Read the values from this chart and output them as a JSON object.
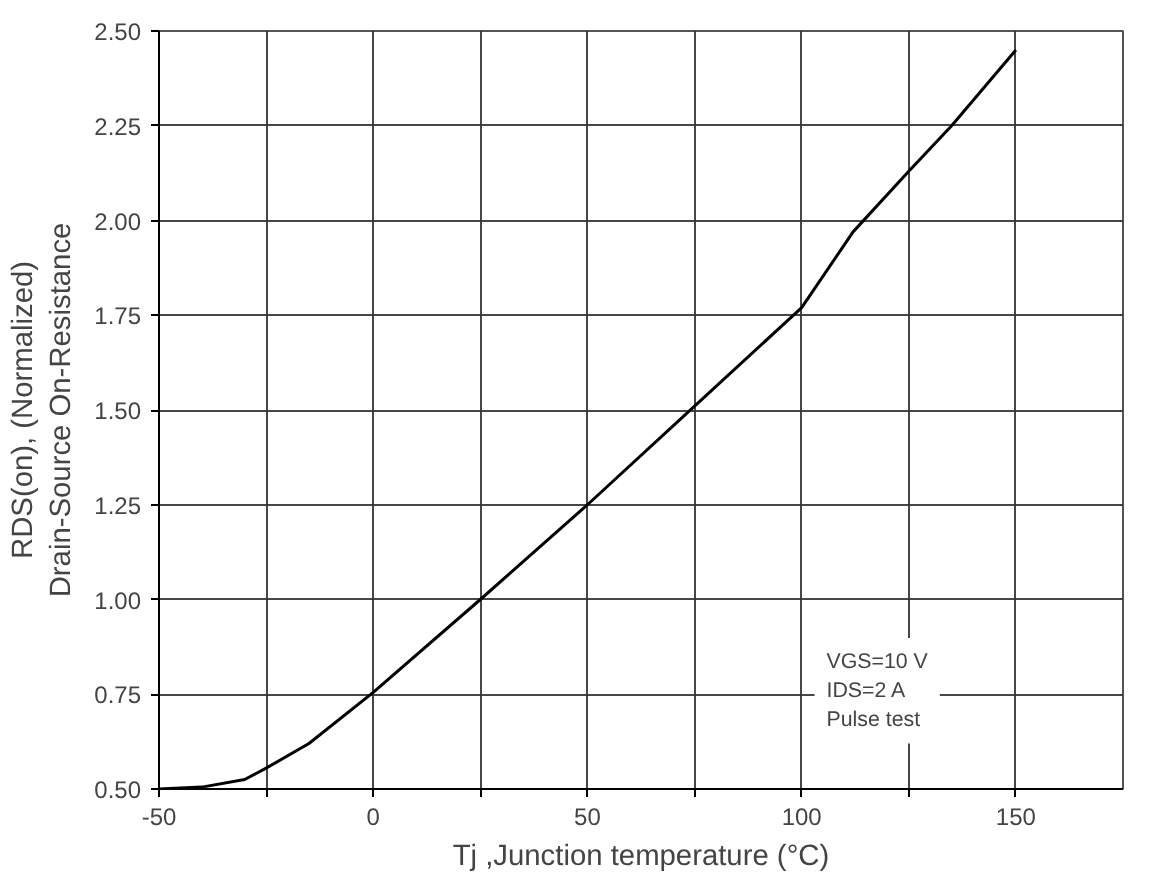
{
  "chart_data": {
    "type": "line",
    "xlabel": "Tj ,Junction temperature (°C)",
    "ylabel": "RDS(on), (Normalized)\nDrain-Source On-Resistance",
    "x": [
      -50,
      -40,
      -30,
      -25,
      -15,
      0,
      25,
      50,
      75,
      100,
      112,
      125,
      135,
      150
    ],
    "series": [
      {
        "color": "#000000",
        "values": [
          0.5,
          0.505,
          0.525,
          0.555,
          0.62,
          0.755,
          1.0,
          1.25,
          1.51,
          1.77,
          1.97,
          2.13,
          2.25,
          2.45
        ]
      }
    ],
    "xlim": [
      -50,
      175
    ],
    "ylim": [
      0.5,
      2.5
    ],
    "xticks": [
      -50,
      {
        "value": -25,
        "label": null
      },
      0,
      {
        "value": 25,
        "label": null
      },
      50,
      {
        "value": 75,
        "label": null
      },
      100,
      {
        "value": 125,
        "label": null
      },
      150
    ],
    "yticks": [
      {
        "value": 0.5,
        "label": "0.50"
      },
      {
        "value": 0.75,
        "label": "0.75"
      },
      {
        "value": 1.0,
        "label": "1.00"
      },
      {
        "value": 1.25,
        "label": "1.25"
      },
      {
        "value": 1.5,
        "label": "1.50"
      },
      {
        "value": 1.75,
        "label": "1.75"
      },
      {
        "value": 2.0,
        "label": "2.00"
      },
      {
        "value": 2.25,
        "label": "2.25"
      },
      {
        "value": 2.5,
        "label": "2.50"
      }
    ],
    "grid": true,
    "marker": "none",
    "line_style": "solid",
    "annotations": [
      "VGS=10 V",
      "IDS=2 A",
      "Pulse test"
    ]
  }
}
